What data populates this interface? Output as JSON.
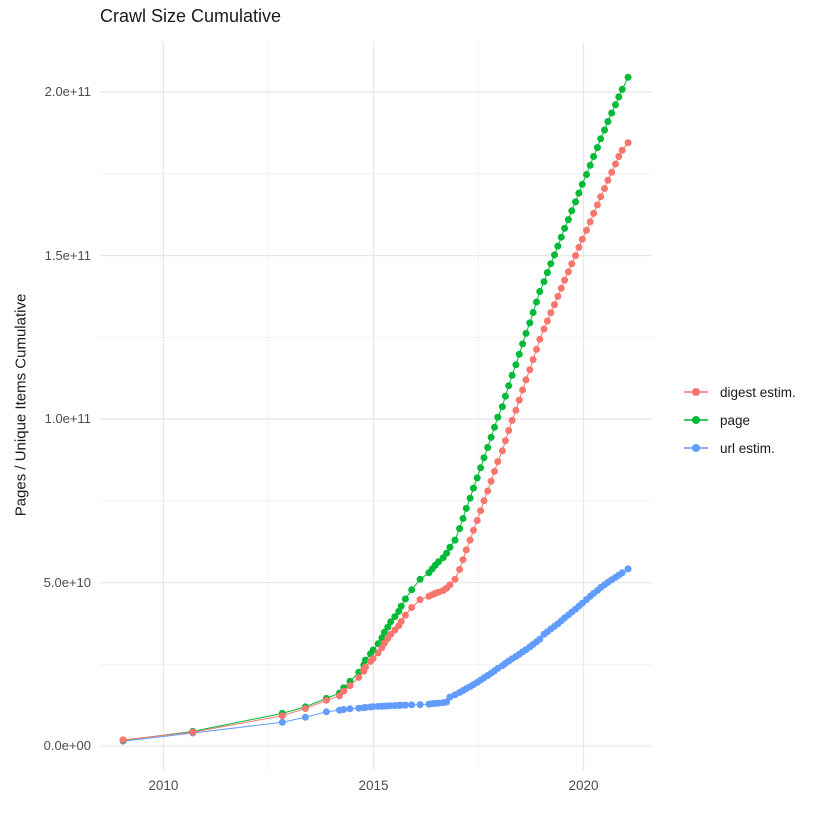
{
  "page": {
    "title": "Crawl Size Cumulative"
  },
  "axes": {
    "y_title": "Pages / Unique Items Cumulative",
    "y_tick_labels": [
      "0.0e+00",
      "5.0e+10",
      "1.0e+11",
      "1.5e+11",
      "2.0e+11"
    ],
    "x_tick_labels": [
      "2010",
      "2015",
      "2020"
    ]
  },
  "legend": {
    "items": [
      {
        "label": "digest estim.",
        "color": "#F8766D"
      },
      {
        "label": "page",
        "color": "#00BA38"
      },
      {
        "label": "url estim.",
        "color": "#619CFF"
      }
    ]
  },
  "colors": {
    "background": "#FFFFFF",
    "grid_major": "#E8E8E8",
    "grid_minor": "#F2F2F2",
    "axis_text": "#4D4D4D",
    "title_text": "#1A1A1A",
    "digest": "#F8766D",
    "page": "#00BA38",
    "url": "#619CFF"
  },
  "chart_data": {
    "type": "line",
    "marker": "circle",
    "title": "Crawl Size Cumulative",
    "xlabel": "",
    "ylabel": "Pages / Unique Items Cumulative",
    "values_unit": "1e9 pages (billions); y tick labels shown in scientific notation",
    "grid": true,
    "legend_position": "right",
    "xlim": [
      2008.49,
      2021.63
    ],
    "ylim": [
      -7.3,
      215.3
    ],
    "x_major_ticks": [
      2010,
      2015,
      2020
    ],
    "x_minor_ticks": [
      2012.5,
      2017.5
    ],
    "y_major_ticks": [
      0,
      50,
      100,
      150,
      200
    ],
    "y_minor_ticks": [
      25,
      75,
      125,
      175
    ],
    "x": [
      2009.04,
      2010.7,
      2012.83,
      2013.38,
      2013.88,
      2014.19,
      2014.29,
      2014.44,
      2014.65,
      2014.77,
      2014.81,
      2014.93,
      2014.99,
      2015.11,
      2015.2,
      2015.26,
      2015.34,
      2015.41,
      2015.51,
      2015.6,
      2015.66,
      2015.76,
      2015.91,
      2016.11,
      2016.32,
      2016.4,
      2016.47,
      2016.55,
      2016.66,
      2016.74,
      2016.82,
      2016.94,
      2017.05,
      2017.13,
      2017.21,
      2017.3,
      2017.38,
      2017.47,
      2017.55,
      2017.63,
      2017.72,
      2017.8,
      2017.88,
      2017.96,
      2018.07,
      2018.14,
      2018.22,
      2018.3,
      2018.39,
      2018.47,
      2018.55,
      2018.63,
      2018.72,
      2018.8,
      2018.88,
      2018.96,
      2019.06,
      2019.14,
      2019.22,
      2019.31,
      2019.39,
      2019.47,
      2019.55,
      2019.64,
      2019.72,
      2019.81,
      2019.89,
      2019.97,
      2020.07,
      2020.16,
      2020.24,
      2020.33,
      2020.41,
      2020.5,
      2020.58,
      2020.67,
      2020.76,
      2020.84,
      2020.92,
      2021.06
    ],
    "series": [
      {
        "name": "digest estim.",
        "color": "#F8766D",
        "values": [
          1.9,
          4.3,
          9.3,
          11.5,
          14.0,
          15.4,
          16.8,
          18.5,
          21.0,
          22.9,
          24.2,
          25.9,
          26.8,
          28.5,
          30.1,
          31.5,
          32.9,
          34.2,
          35.5,
          36.8,
          38.1,
          40.0,
          42.4,
          44.8,
          45.8,
          46.3,
          46.7,
          47.1,
          47.6,
          48.3,
          49.3,
          51.0,
          54.0,
          57.0,
          60.0,
          63.0,
          66.0,
          69.0,
          72.0,
          75.0,
          78.0,
          81.0,
          84.0,
          87.0,
          90.3,
          93.4,
          96.5,
          99.6,
          102.7,
          105.8,
          108.9,
          112.0,
          115.1,
          118.2,
          121.3,
          124.4,
          127.5,
          130.0,
          132.5,
          135.0,
          137.5,
          140.0,
          142.5,
          145.0,
          147.5,
          150.0,
          152.5,
          155.0,
          157.7,
          160.3,
          162.9,
          165.5,
          168.0,
          170.5,
          173.0,
          175.5,
          178.0,
          180.3,
          182.2,
          184.5
        ]
      },
      {
        "name": "page",
        "color": "#00BA38",
        "values": [
          1.75,
          4.5,
          10.0,
          12.0,
          14.6,
          16.2,
          17.8,
          19.8,
          22.6,
          24.8,
          26.3,
          28.2,
          29.4,
          31.3,
          33.1,
          34.8,
          36.4,
          38.0,
          39.6,
          41.2,
          42.8,
          45.0,
          47.8,
          51.0,
          53.0,
          54.2,
          55.3,
          56.4,
          57.6,
          59.0,
          60.8,
          63.0,
          66.5,
          69.6,
          72.7,
          75.8,
          78.9,
          82.0,
          85.1,
          88.2,
          91.3,
          94.4,
          97.5,
          100.6,
          103.8,
          107.0,
          110.2,
          113.4,
          116.6,
          119.8,
          123.0,
          126.2,
          129.4,
          132.6,
          135.8,
          139.0,
          142.0,
          144.8,
          147.5,
          150.2,
          152.9,
          155.6,
          158.3,
          161.0,
          163.7,
          166.4,
          169.1,
          171.8,
          174.8,
          177.6,
          180.3,
          183.0,
          185.7,
          188.4,
          191.0,
          193.6,
          196.1,
          198.5,
          200.8,
          204.5
        ]
      },
      {
        "name": "url estim.",
        "color": "#619CFF",
        "values": [
          1.5,
          4.0,
          7.3,
          8.8,
          10.5,
          11.0,
          11.2,
          11.4,
          11.6,
          11.75,
          11.85,
          11.95,
          12.05,
          12.15,
          12.2,
          12.25,
          12.3,
          12.35,
          12.4,
          12.45,
          12.5,
          12.55,
          12.6,
          12.7,
          12.85,
          12.95,
          13.05,
          13.15,
          13.3,
          13.5,
          15.0,
          15.7,
          16.4,
          17.0,
          17.6,
          18.2,
          18.8,
          19.5,
          20.2,
          20.9,
          21.6,
          22.3,
          23.0,
          23.8,
          24.6,
          25.3,
          26.0,
          26.7,
          27.4,
          28.1,
          28.8,
          29.5,
          30.3,
          31.1,
          31.9,
          32.7,
          34.2,
          35.0,
          35.8,
          36.6,
          37.4,
          38.3,
          39.2,
          40.1,
          41.0,
          41.9,
          42.8,
          43.7,
          44.8,
          45.8,
          46.7,
          47.6,
          48.5,
          49.3,
          50.1,
          50.9,
          51.6,
          52.3,
          53.0,
          54.2
        ]
      }
    ],
    "draw_order": [
      2,
      1,
      0
    ]
  }
}
